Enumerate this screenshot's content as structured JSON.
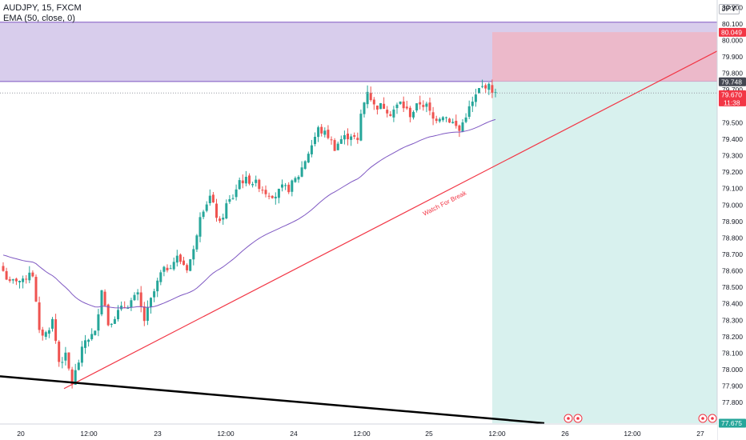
{
  "header": {
    "symbol_line": "AUDJPY, 15, FXCM",
    "indicator_line": "EMA (50, close, 0)",
    "currency": "JPY"
  },
  "colors": {
    "up": "#26a69a",
    "down": "#ef5350",
    "ema": "#7e57c2",
    "trendline": "#f23645",
    "support_line": "#000000",
    "purple_zone": "#d1c4e9",
    "purple_zone_border": "#7e57c2",
    "stop_zone": "#f5b0bc",
    "target_zone": "#d4efec"
  },
  "chart_data": {
    "type": "candlestick",
    "symbol": "AUDJPY",
    "timeframe": "15",
    "ylim": [
      77.67,
      80.245
    ],
    "y_ticks": [
      77.8,
      77.9,
      78.0,
      78.1,
      78.2,
      78.3,
      78.4,
      78.5,
      78.6,
      78.7,
      78.8,
      78.9,
      79.0,
      79.1,
      79.2,
      79.3,
      79.4,
      79.5,
      79.7,
      79.8,
      79.9,
      80.0,
      80.1,
      80.2
    ],
    "y_tick_labels": [
      "77.800",
      "77.900",
      "78.000",
      "78.100",
      "78.200",
      "78.300",
      "78.400",
      "78.500",
      "78.600",
      "78.700",
      "78.800",
      "78.900",
      "79.000",
      "79.100",
      "79.200",
      "79.300",
      "79.400",
      "79.500",
      "79.700",
      "79.800",
      "79.900",
      "80.000",
      "80.100",
      "80.200"
    ],
    "x_labels": [
      "20",
      "12:00",
      "23",
      "12:00",
      "24",
      "12:00",
      "25",
      "12:00",
      "26",
      "12:00",
      "27"
    ],
    "price_markers": [
      {
        "label": "80.049",
        "value": 80.049,
        "color": "#f23645"
      },
      {
        "label": "79.748",
        "value": 79.748,
        "color": "#434651"
      },
      {
        "label": "79.670",
        "sub": "11:38",
        "value": 79.67,
        "color": "#f23645"
      },
      {
        "label": "77.675",
        "value": 77.675,
        "color": "#26a69a"
      }
    ],
    "zones": {
      "resistance": [
        79.75,
        80.11
      ],
      "stop": [
        79.75,
        80.05
      ],
      "target": [
        77.675,
        79.75
      ]
    },
    "trendline_label": "Watch For Break",
    "anchors": [
      {
        "i": 0,
        "v": 78.6
      },
      {
        "i": 2,
        "v": 78.52
      },
      {
        "i": 4,
        "v": 78.55
      },
      {
        "i": 6,
        "v": 78.53
      },
      {
        "i": 8,
        "v": 78.6
      },
      {
        "i": 9,
        "v": 78.58
      },
      {
        "i": 10,
        "v": 78.4
      },
      {
        "i": 11,
        "v": 78.22
      },
      {
        "i": 13,
        "v": 78.22
      },
      {
        "i": 15,
        "v": 78.3
      },
      {
        "i": 17,
        "v": 78.05
      },
      {
        "i": 19,
        "v": 78.08
      },
      {
        "i": 21,
        "v": 77.92
      },
      {
        "i": 23,
        "v": 78.05
      },
      {
        "i": 25,
        "v": 78.18
      },
      {
        "i": 28,
        "v": 78.22
      },
      {
        "i": 30,
        "v": 78.5
      },
      {
        "i": 32,
        "v": 78.28
      },
      {
        "i": 35,
        "v": 78.35
      },
      {
        "i": 38,
        "v": 78.4
      },
      {
        "i": 41,
        "v": 78.45
      },
      {
        "i": 43,
        "v": 78.3
      },
      {
        "i": 45,
        "v": 78.42
      },
      {
        "i": 48,
        "v": 78.58
      },
      {
        "i": 50,
        "v": 78.62
      },
      {
        "i": 53,
        "v": 78.68
      },
      {
        "i": 56,
        "v": 78.62
      },
      {
        "i": 58,
        "v": 78.72
      },
      {
        "i": 60,
        "v": 78.95
      },
      {
        "i": 63,
        "v": 79.05
      },
      {
        "i": 66,
        "v": 78.88
      },
      {
        "i": 68,
        "v": 79.0
      },
      {
        "i": 70,
        "v": 79.05
      },
      {
        "i": 72,
        "v": 79.15
      },
      {
        "i": 75,
        "v": 79.15
      },
      {
        "i": 78,
        "v": 79.12
      },
      {
        "i": 80,
        "v": 79.08
      },
      {
        "i": 83,
        "v": 79.06
      },
      {
        "i": 85,
        "v": 79.1
      },
      {
        "i": 87,
        "v": 79.1
      },
      {
        "i": 90,
        "v": 79.18
      },
      {
        "i": 93,
        "v": 79.32
      },
      {
        "i": 96,
        "v": 79.46
      },
      {
        "i": 99,
        "v": 79.42
      },
      {
        "i": 101,
        "v": 79.35
      },
      {
        "i": 103,
        "v": 79.4
      },
      {
        "i": 106,
        "v": 79.43
      },
      {
        "i": 108,
        "v": 79.38
      },
      {
        "i": 109,
        "v": 79.55
      },
      {
        "i": 111,
        "v": 79.7
      },
      {
        "i": 113,
        "v": 79.6
      },
      {
        "i": 116,
        "v": 79.6
      },
      {
        "i": 118,
        "v": 79.56
      },
      {
        "i": 121,
        "v": 79.62
      },
      {
        "i": 124,
        "v": 79.55
      },
      {
        "i": 127,
        "v": 79.62
      },
      {
        "i": 129,
        "v": 79.6
      },
      {
        "i": 131,
        "v": 79.52
      },
      {
        "i": 134,
        "v": 79.55
      },
      {
        "i": 137,
        "v": 79.5
      },
      {
        "i": 139,
        "v": 79.45
      },
      {
        "i": 141,
        "v": 79.55
      },
      {
        "i": 143,
        "v": 79.62
      },
      {
        "i": 145,
        "v": 79.7
      },
      {
        "i": 147,
        "v": 79.73
      },
      {
        "i": 149,
        "v": 79.7
      },
      {
        "i": 150,
        "v": 79.67
      }
    ],
    "ema_period": 50
  }
}
